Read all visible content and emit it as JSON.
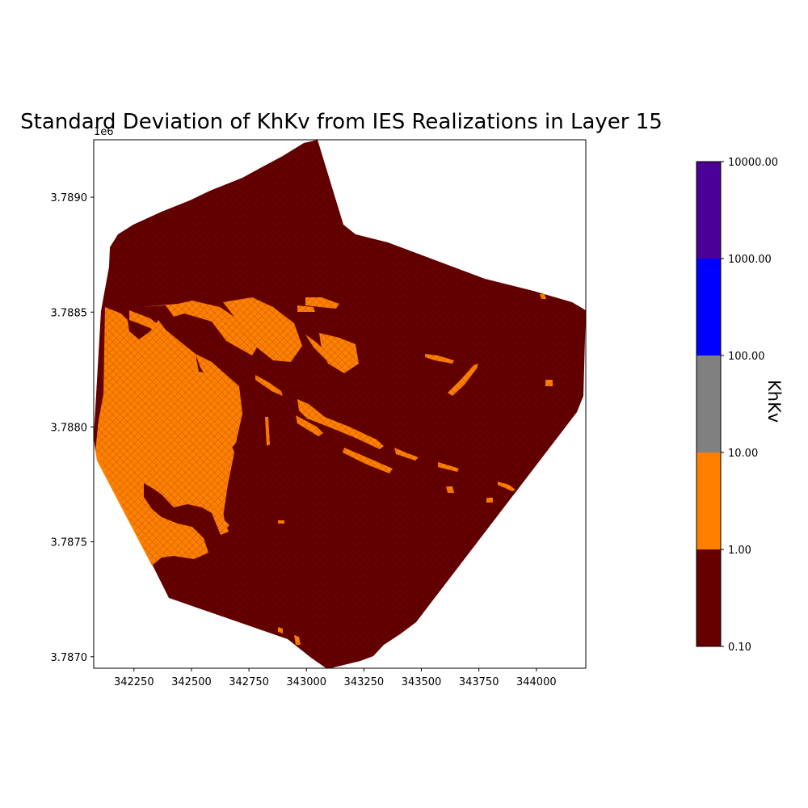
{
  "chart_data": {
    "type": "map",
    "title": "Standard Deviation of KhKv from IES Realizations in Layer 15",
    "y_offset_label": "1e6",
    "xlim": [
      342075,
      344215
    ],
    "ylim": [
      3786950,
      3789250
    ],
    "x_ticks": [
      {
        "value": 342250,
        "label": "342250"
      },
      {
        "value": 342500,
        "label": "342500"
      },
      {
        "value": 342750,
        "label": "342750"
      },
      {
        "value": 343000,
        "label": "343000"
      },
      {
        "value": 343250,
        "label": "343250"
      },
      {
        "value": 343500,
        "label": "343500"
      },
      {
        "value": 343750,
        "label": "343750"
      },
      {
        "value": 344000,
        "label": "344000"
      }
    ],
    "y_ticks": [
      {
        "value": 3787000,
        "label": "3.7870"
      },
      {
        "value": 3787500,
        "label": "3.7875"
      },
      {
        "value": 3788000,
        "label": "3.7880"
      },
      {
        "value": 3788500,
        "label": "3.7885"
      },
      {
        "value": 3789000,
        "label": "3.7890"
      }
    ],
    "colorbar": {
      "label": "KhKv",
      "boundaries": [
        {
          "value": 0.1,
          "label": "0.10"
        },
        {
          "value": 1,
          "label": "1.00"
        },
        {
          "value": 10,
          "label": "10.00"
        },
        {
          "value": 100,
          "label": "100.00"
        },
        {
          "value": 1000,
          "label": "1000.00"
        },
        {
          "value": 10000,
          "label": "10000.00"
        }
      ],
      "colors": [
        "#660000",
        "#ff7f00",
        "#808080",
        "#0000ff",
        "#4b0096"
      ]
    },
    "colors": {
      "low": "#660000",
      "mid": "#ff7f00"
    }
  }
}
